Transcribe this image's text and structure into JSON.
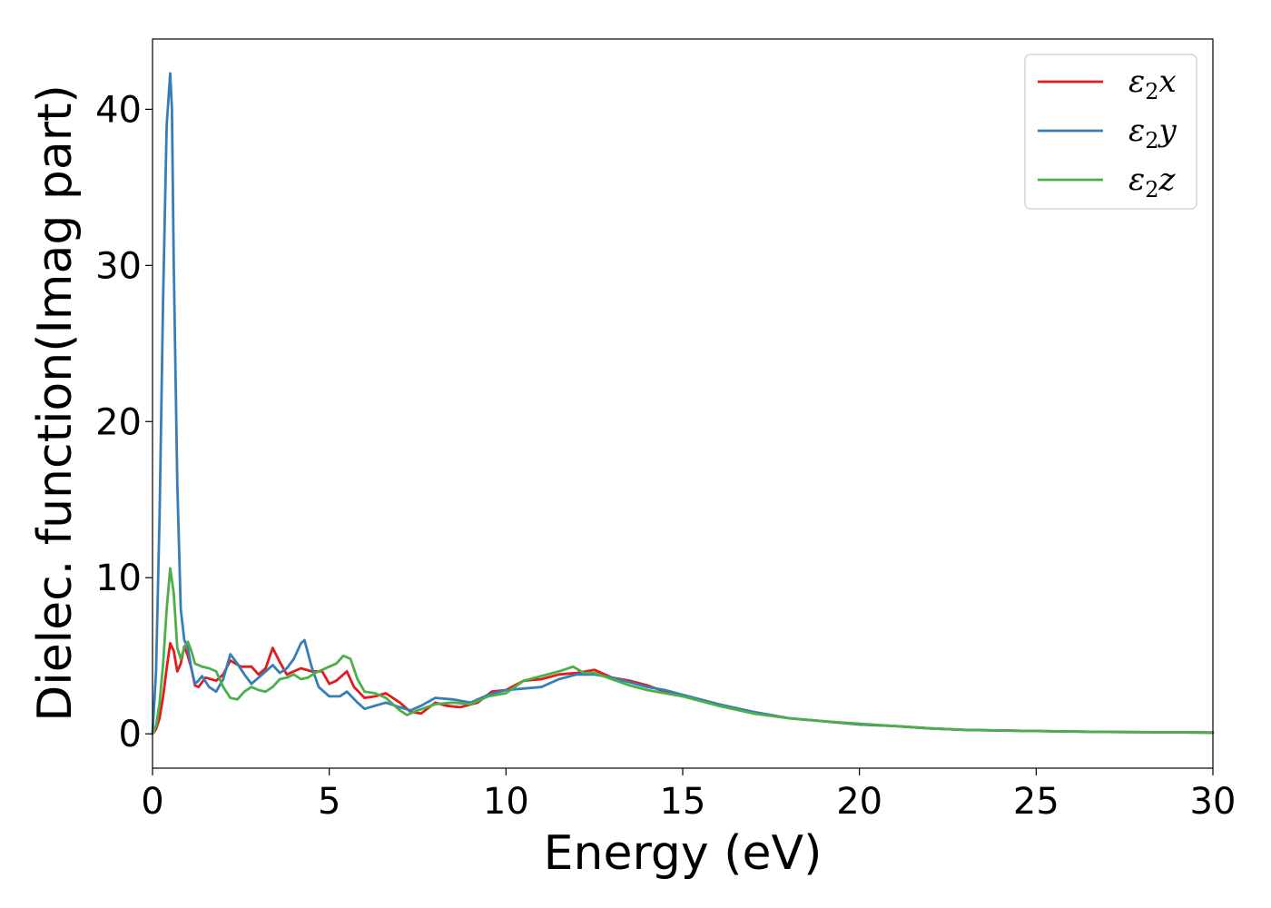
{
  "chart_data": {
    "type": "line",
    "xlabel": "Energy (eV)",
    "ylabel": "Dielec. function(Imag part)",
    "xlim": [
      0,
      30
    ],
    "ylim": [
      -2.2,
      44.5
    ],
    "x_ticks": [
      "0",
      "5",
      "10",
      "15",
      "20",
      "25",
      "30"
    ],
    "y_ticks": [
      "0",
      "10",
      "20",
      "30",
      "40"
    ],
    "grid": false,
    "legend_position": "top-right",
    "series": [
      {
        "name": "ε2x",
        "color": "#e41a1c",
        "points": [
          [
            0,
            0
          ],
          [
            0.1,
            0.3
          ],
          [
            0.2,
            1.0
          ],
          [
            0.3,
            2.4
          ],
          [
            0.4,
            4.2
          ],
          [
            0.5,
            5.8
          ],
          [
            0.6,
            5.3
          ],
          [
            0.7,
            4.0
          ],
          [
            0.8,
            4.5
          ],
          [
            0.9,
            5.6
          ],
          [
            1.0,
            5.0
          ],
          [
            1.1,
            4.2
          ],
          [
            1.2,
            3.1
          ],
          [
            1.3,
            3.0
          ],
          [
            1.5,
            3.6
          ],
          [
            1.8,
            3.4
          ],
          [
            2.0,
            3.8
          ],
          [
            2.2,
            4.7
          ],
          [
            2.5,
            4.3
          ],
          [
            2.8,
            4.3
          ],
          [
            3.0,
            3.8
          ],
          [
            3.2,
            4.2
          ],
          [
            3.4,
            5.5
          ],
          [
            3.6,
            4.6
          ],
          [
            3.8,
            3.8
          ],
          [
            4.0,
            4.0
          ],
          [
            4.2,
            4.2
          ],
          [
            4.5,
            4.0
          ],
          [
            4.8,
            4.0
          ],
          [
            5.0,
            3.2
          ],
          [
            5.2,
            3.4
          ],
          [
            5.5,
            4.0
          ],
          [
            5.7,
            3.0
          ],
          [
            6.0,
            2.3
          ],
          [
            6.3,
            2.4
          ],
          [
            6.6,
            2.6
          ],
          [
            7.0,
            2.0
          ],
          [
            7.3,
            1.4
          ],
          [
            7.6,
            1.3
          ],
          [
            8.0,
            2.0
          ],
          [
            8.3,
            1.8
          ],
          [
            8.7,
            1.7
          ],
          [
            9.2,
            2.0
          ],
          [
            9.6,
            2.7
          ],
          [
            10.0,
            2.8
          ],
          [
            10.5,
            3.4
          ],
          [
            11.0,
            3.5
          ],
          [
            11.5,
            3.8
          ],
          [
            12.0,
            3.9
          ],
          [
            12.5,
            4.1
          ],
          [
            13.0,
            3.6
          ],
          [
            13.5,
            3.4
          ],
          [
            14.0,
            3.1
          ],
          [
            14.5,
            2.7
          ],
          [
            15.0,
            2.4
          ],
          [
            15.5,
            2.2
          ],
          [
            16.0,
            1.9
          ],
          [
            17.0,
            1.4
          ],
          [
            18.0,
            1.0
          ],
          [
            19.0,
            0.8
          ],
          [
            20.0,
            0.6
          ],
          [
            21.0,
            0.5
          ],
          [
            22.0,
            0.35
          ],
          [
            23.0,
            0.25
          ],
          [
            25.0,
            0.18
          ],
          [
            27.0,
            0.12
          ],
          [
            30.0,
            0.08
          ]
        ]
      },
      {
        "name": "ε2y",
        "color": "#377eb8",
        "points": [
          [
            0,
            0
          ],
          [
            0.1,
            4.0
          ],
          [
            0.2,
            14.0
          ],
          [
            0.3,
            28.0
          ],
          [
            0.4,
            39.0
          ],
          [
            0.5,
            42.3
          ],
          [
            0.55,
            40.0
          ],
          [
            0.6,
            30.0
          ],
          [
            0.7,
            16.0
          ],
          [
            0.8,
            8.0
          ],
          [
            0.9,
            6.0
          ],
          [
            1.0,
            5.5
          ],
          [
            1.1,
            4.2
          ],
          [
            1.2,
            3.2
          ],
          [
            1.3,
            3.4
          ],
          [
            1.4,
            3.7
          ],
          [
            1.6,
            3.0
          ],
          [
            1.8,
            2.7
          ],
          [
            2.0,
            3.5
          ],
          [
            2.2,
            5.1
          ],
          [
            2.4,
            4.5
          ],
          [
            2.6,
            3.8
          ],
          [
            2.8,
            3.2
          ],
          [
            3.0,
            3.6
          ],
          [
            3.2,
            4.0
          ],
          [
            3.4,
            4.4
          ],
          [
            3.6,
            3.9
          ],
          [
            3.8,
            4.2
          ],
          [
            4.0,
            4.8
          ],
          [
            4.2,
            5.8
          ],
          [
            4.3,
            6.0
          ],
          [
            4.5,
            4.3
          ],
          [
            4.7,
            3.0
          ],
          [
            5.0,
            2.4
          ],
          [
            5.3,
            2.4
          ],
          [
            5.5,
            2.7
          ],
          [
            5.8,
            2.0
          ],
          [
            6.0,
            1.6
          ],
          [
            6.3,
            1.8
          ],
          [
            6.6,
            2.0
          ],
          [
            7.0,
            1.7
          ],
          [
            7.3,
            1.5
          ],
          [
            7.6,
            1.8
          ],
          [
            8.0,
            2.3
          ],
          [
            8.5,
            2.2
          ],
          [
            9.0,
            2.0
          ],
          [
            9.5,
            2.5
          ],
          [
            10.0,
            2.8
          ],
          [
            10.5,
            2.9
          ],
          [
            11.0,
            3.0
          ],
          [
            11.5,
            3.5
          ],
          [
            12.0,
            3.8
          ],
          [
            12.5,
            3.8
          ],
          [
            13.0,
            3.6
          ],
          [
            13.5,
            3.3
          ],
          [
            14.0,
            3.0
          ],
          [
            14.5,
            2.8
          ],
          [
            15.0,
            2.5
          ],
          [
            16.0,
            1.9
          ],
          [
            17.0,
            1.4
          ],
          [
            18.0,
            1.0
          ],
          [
            19.0,
            0.8
          ],
          [
            20.0,
            0.6
          ],
          [
            21.0,
            0.5
          ],
          [
            22.0,
            0.35
          ],
          [
            23.0,
            0.25
          ],
          [
            25.0,
            0.18
          ],
          [
            27.0,
            0.12
          ],
          [
            30.0,
            0.08
          ]
        ]
      },
      {
        "name": "ε2z",
        "color": "#4daf4a",
        "points": [
          [
            0,
            0
          ],
          [
            0.1,
            0.5
          ],
          [
            0.2,
            2.0
          ],
          [
            0.3,
            4.5
          ],
          [
            0.4,
            8.0
          ],
          [
            0.5,
            10.6
          ],
          [
            0.6,
            9.0
          ],
          [
            0.7,
            5.5
          ],
          [
            0.8,
            4.8
          ],
          [
            0.9,
            5.5
          ],
          [
            1.0,
            5.9
          ],
          [
            1.1,
            5.3
          ],
          [
            1.2,
            4.5
          ],
          [
            1.4,
            4.3
          ],
          [
            1.6,
            4.2
          ],
          [
            1.8,
            4.0
          ],
          [
            2.0,
            3.0
          ],
          [
            2.2,
            2.3
          ],
          [
            2.4,
            2.2
          ],
          [
            2.6,
            2.7
          ],
          [
            2.8,
            3.0
          ],
          [
            3.0,
            2.8
          ],
          [
            3.2,
            2.7
          ],
          [
            3.4,
            3.0
          ],
          [
            3.6,
            3.5
          ],
          [
            3.8,
            3.6
          ],
          [
            4.0,
            3.8
          ],
          [
            4.2,
            3.5
          ],
          [
            4.4,
            3.6
          ],
          [
            4.6,
            3.9
          ],
          [
            4.8,
            4.1
          ],
          [
            5.0,
            4.3
          ],
          [
            5.2,
            4.5
          ],
          [
            5.4,
            5.0
          ],
          [
            5.6,
            4.8
          ],
          [
            5.8,
            3.5
          ],
          [
            6.0,
            2.7
          ],
          [
            6.3,
            2.6
          ],
          [
            6.6,
            2.3
          ],
          [
            7.0,
            1.5
          ],
          [
            7.2,
            1.2
          ],
          [
            7.5,
            1.5
          ],
          [
            8.0,
            1.9
          ],
          [
            8.5,
            2.0
          ],
          [
            9.0,
            1.9
          ],
          [
            9.5,
            2.4
          ],
          [
            10.0,
            2.6
          ],
          [
            10.5,
            3.4
          ],
          [
            11.0,
            3.7
          ],
          [
            11.5,
            4.0
          ],
          [
            11.9,
            4.3
          ],
          [
            12.2,
            3.9
          ],
          [
            12.5,
            3.9
          ],
          [
            13.0,
            3.5
          ],
          [
            13.5,
            3.1
          ],
          [
            14.0,
            2.8
          ],
          [
            14.5,
            2.6
          ],
          [
            15.0,
            2.4
          ],
          [
            16.0,
            1.8
          ],
          [
            17.0,
            1.3
          ],
          [
            18.0,
            1.0
          ],
          [
            19.0,
            0.8
          ],
          [
            20.0,
            0.65
          ],
          [
            21.0,
            0.5
          ],
          [
            22.0,
            0.35
          ],
          [
            23.0,
            0.25
          ],
          [
            25.0,
            0.18
          ],
          [
            27.0,
            0.12
          ],
          [
            30.0,
            0.08
          ]
        ]
      }
    ]
  }
}
